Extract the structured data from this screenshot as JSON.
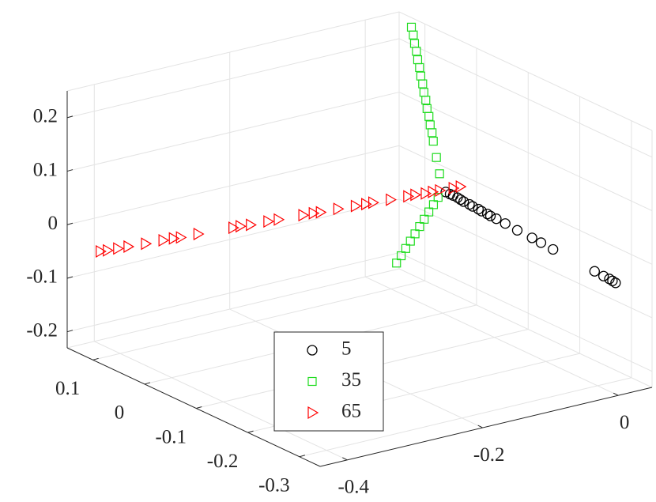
{
  "chart_data": {
    "type": "scatter",
    "xlim": [
      -0.34,
      0.15
    ],
    "ylim": [
      -0.44,
      0.05
    ],
    "zlim": [
      -0.23,
      0.25
    ],
    "xticks": [
      0.1,
      0,
      -0.1,
      -0.2,
      -0.3
    ],
    "yticks": [
      -0.4,
      -0.2,
      0
    ],
    "zticks": [
      -0.2,
      -0.1,
      0,
      0.1,
      0.2
    ],
    "grid": true,
    "legend_location": "south",
    "series": [
      {
        "name": "5",
        "color": "#000000",
        "marker": "o",
        "x": [
          -0.006,
          -0.013,
          -0.019,
          -0.026,
          -0.032,
          -0.038,
          -0.048,
          -0.054,
          -0.064,
          -0.07,
          -0.08,
          -0.086,
          -0.096,
          -0.112,
          -0.134,
          -0.16,
          -0.176,
          -0.198,
          -0.272,
          -0.288,
          -0.298,
          -0.304,
          -0.31
        ],
        "y": [
          0.0,
          0.001,
          0.001,
          0.002,
          0.002,
          0.002,
          0.003,
          0.003,
          0.004,
          0.004,
          0.005,
          0.005,
          0.006,
          0.007,
          0.008,
          0.01,
          0.011,
          0.012,
          0.017,
          0.018,
          0.019,
          0.019,
          0.019
        ],
        "z": [
          -0.001,
          -0.002,
          -0.002,
          -0.003,
          -0.004,
          -0.005,
          -0.006,
          -0.007,
          -0.008,
          -0.009,
          -0.01,
          -0.011,
          -0.012,
          -0.014,
          -0.017,
          -0.02,
          -0.022,
          -0.025,
          -0.034,
          -0.036,
          -0.037,
          -0.038,
          -0.039
        ]
      },
      {
        "name": "35",
        "color": "#1fdc1f",
        "marker": "s",
        "x": [
          0.01,
          0.02,
          0.03,
          0.035,
          0.04,
          0.045,
          0.05,
          0.055,
          0.06,
          0.065,
          0.07,
          0.075,
          0.08,
          0.085,
          0.09,
          0.095,
          0.1,
          0.005,
          0.01,
          0.015,
          0.02,
          0.025,
          0.03,
          0.035,
          0.04,
          0.045,
          0.05
        ],
        "y": [
          0.003,
          0.006,
          0.009,
          0.011,
          0.012,
          0.014,
          0.015,
          0.017,
          0.018,
          0.02,
          0.021,
          0.023,
          0.024,
          0.026,
          0.027,
          0.029,
          0.03,
          -0.003,
          -0.006,
          -0.009,
          -0.012,
          -0.015,
          -0.018,
          -0.021,
          -0.024,
          -0.027,
          -0.03
        ],
        "z": [
          0.025,
          0.05,
          0.075,
          0.088,
          0.1,
          0.113,
          0.125,
          0.138,
          0.15,
          0.163,
          0.175,
          0.188,
          0.2,
          0.213,
          0.225,
          0.238,
          0.25,
          -0.015,
          -0.03,
          -0.045,
          -0.06,
          -0.075,
          -0.09,
          -0.105,
          -0.12,
          -0.135,
          -0.15
        ]
      },
      {
        "name": "65",
        "color": "#ff0000",
        "marker": ">",
        "x": [
          0.098,
          0.096,
          0.093,
          0.09,
          0.085,
          0.08,
          0.077,
          0.075,
          0.07,
          0.06,
          0.058,
          0.055,
          0.05,
          0.047,
          0.04,
          0.037,
          0.035,
          0.03,
          0.025,
          0.022,
          0.02,
          0.015,
          0.01,
          0.008,
          0.005,
          0.003,
          0.001,
          -0.003,
          -0.005
        ],
        "y": [
          -0.431,
          -0.422,
          -0.409,
          -0.396,
          -0.374,
          -0.352,
          -0.339,
          -0.33,
          -0.308,
          -0.264,
          -0.255,
          -0.242,
          -0.22,
          -0.207,
          -0.176,
          -0.163,
          -0.154,
          -0.132,
          -0.11,
          -0.097,
          -0.088,
          -0.066,
          -0.044,
          -0.035,
          -0.022,
          -0.013,
          -0.004,
          0.013,
          0.022
        ],
        "z": [
          -0.029,
          -0.029,
          -0.028,
          -0.027,
          -0.026,
          -0.024,
          -0.023,
          -0.023,
          -0.021,
          -0.018,
          -0.017,
          -0.017,
          -0.015,
          -0.014,
          -0.012,
          -0.011,
          -0.011,
          -0.009,
          -0.008,
          -0.007,
          -0.006,
          -0.005,
          -0.003,
          -0.002,
          -0.002,
          -0.001,
          0.0,
          0.001,
          0.002
        ]
      }
    ]
  }
}
